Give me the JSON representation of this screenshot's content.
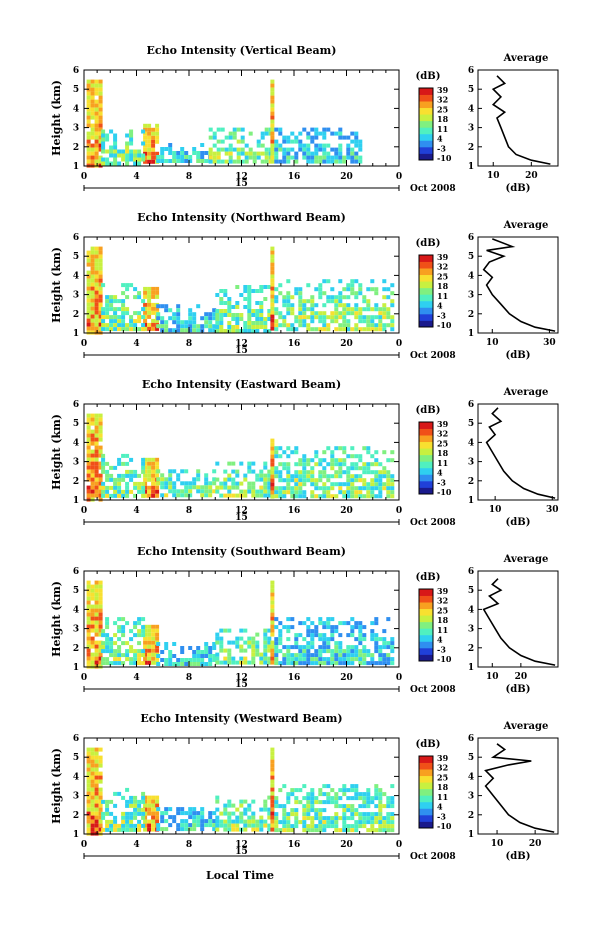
{
  "figure": {
    "xlabel": "Local Time",
    "date_label": "Oct 2008",
    "day_label": "15",
    "colorbar_unit": "(dB)",
    "avg_title": "Average",
    "avg_xlabel": "(dB)"
  },
  "colorbar": {
    "ticks": [
      "39",
      "32",
      "25",
      "18",
      "11",
      "4",
      "-3",
      "-10"
    ],
    "colors": [
      "#1a1a8c",
      "#2040d8",
      "#2f8ff0",
      "#2fd0f0",
      "#50f0c0",
      "#80f080",
      "#c8f040",
      "#f8e030",
      "#f8a020",
      "#f05018",
      "#d81818"
    ]
  },
  "chart_data": [
    {
      "type": "heatmap",
      "title": "Echo Intensity (Vertical Beam)",
      "ylabel": "Height (km)",
      "xlim": [
        0,
        24
      ],
      "ylim": [
        1,
        6
      ],
      "xticks": [
        "0",
        "4",
        "8",
        "12",
        "16",
        "20",
        "0"
      ],
      "yticks": [
        "1",
        "2",
        "3",
        "4",
        "5",
        "6"
      ],
      "echo_regions": [
        {
          "t0": 0.2,
          "t1": 1.3,
          "h0": 1.1,
          "h1": 5.5,
          "level": "strong"
        },
        {
          "t0": 4.5,
          "t1": 5.5,
          "h0": 1.2,
          "h1": 3.2,
          "level": "strong"
        },
        {
          "t0": 1.3,
          "t1": 4.5,
          "h0": 1.2,
          "h1": 2.9,
          "level": "moderate"
        },
        {
          "t0": 5.5,
          "t1": 9.5,
          "h0": 1.2,
          "h1": 2.2,
          "level": "weak"
        },
        {
          "t0": 9.5,
          "t1": 14.2,
          "h0": 1.2,
          "h1": 3.0,
          "level": "moderate"
        },
        {
          "t0": 14.2,
          "t1": 14.5,
          "h0": 1.2,
          "h1": 5.5,
          "level": "strong"
        },
        {
          "t0": 14.5,
          "t1": 21.0,
          "h0": 1.2,
          "h1": 3.0,
          "level": "weak"
        }
      ],
      "average": {
        "xlim": [
          6,
          27
        ],
        "xticks": [
          "10",
          "20"
        ],
        "profile": [
          [
            25,
            1.1
          ],
          [
            20,
            1.3
          ],
          [
            16,
            1.6
          ],
          [
            14,
            2.0
          ],
          [
            13,
            2.5
          ],
          [
            12,
            3.0
          ],
          [
            11,
            3.5
          ],
          [
            13,
            3.8
          ],
          [
            10,
            4.2
          ],
          [
            12,
            4.6
          ],
          [
            10,
            5.0
          ],
          [
            13,
            5.3
          ],
          [
            11,
            5.7
          ]
        ]
      }
    },
    {
      "type": "heatmap",
      "title": "Echo Intensity (Northward Beam)",
      "ylabel": "Height (km)",
      "xlim": [
        0,
        24
      ],
      "ylim": [
        1,
        6
      ],
      "xticks": [
        "0",
        "4",
        "8",
        "12",
        "16",
        "20",
        "0"
      ],
      "yticks": [
        "1",
        "2",
        "3",
        "4",
        "5",
        "6"
      ],
      "echo_regions": [
        {
          "t0": 0.2,
          "t1": 1.3,
          "h0": 1.1,
          "h1": 5.5,
          "level": "strong"
        },
        {
          "t0": 4.5,
          "t1": 5.5,
          "h0": 1.3,
          "h1": 3.4,
          "level": "strong"
        },
        {
          "t0": 1.3,
          "t1": 4.5,
          "h0": 1.2,
          "h1": 3.6,
          "level": "moderate"
        },
        {
          "t0": 5.5,
          "t1": 10.0,
          "h0": 1.2,
          "h1": 2.5,
          "level": "weak"
        },
        {
          "t0": 10.0,
          "t1": 14.2,
          "h0": 1.2,
          "h1": 3.5,
          "level": "moderate"
        },
        {
          "t0": 14.2,
          "t1": 14.5,
          "h0": 1.2,
          "h1": 5.5,
          "level": "strong"
        },
        {
          "t0": 14.5,
          "t1": 23.5,
          "h0": 1.2,
          "h1": 3.8,
          "level": "moderate"
        }
      ],
      "average": {
        "xlim": [
          5,
          33
        ],
        "xticks": [
          "10",
          "30"
        ],
        "profile": [
          [
            32,
            1.1
          ],
          [
            25,
            1.3
          ],
          [
            20,
            1.6
          ],
          [
            16,
            2.0
          ],
          [
            13,
            2.5
          ],
          [
            10,
            3.0
          ],
          [
            8,
            3.5
          ],
          [
            10,
            3.9
          ],
          [
            7,
            4.3
          ],
          [
            9,
            4.7
          ],
          [
            14,
            5.0
          ],
          [
            8,
            5.3
          ],
          [
            17,
            5.5
          ],
          [
            10,
            5.9
          ]
        ]
      }
    },
    {
      "type": "heatmap",
      "title": "Echo Intensity (Eastward Beam)",
      "ylabel": "Height (km)",
      "xlim": [
        0,
        24
      ],
      "ylim": [
        1,
        6
      ],
      "xticks": [
        "0",
        "4",
        "8",
        "12",
        "16",
        "20",
        "0"
      ],
      "yticks": [
        "1",
        "2",
        "3",
        "4",
        "5",
        "6"
      ],
      "echo_regions": [
        {
          "t0": 0.2,
          "t1": 1.3,
          "h0": 1.1,
          "h1": 5.5,
          "level": "strong"
        },
        {
          "t0": 4.5,
          "t1": 5.5,
          "h0": 1.3,
          "h1": 3.2,
          "level": "strong"
        },
        {
          "t0": 1.3,
          "t1": 4.5,
          "h0": 1.2,
          "h1": 3.4,
          "level": "moderate"
        },
        {
          "t0": 5.5,
          "t1": 10.0,
          "h0": 1.2,
          "h1": 2.6,
          "level": "moderate"
        },
        {
          "t0": 10.0,
          "t1": 14.2,
          "h0": 1.2,
          "h1": 3.0,
          "level": "moderate"
        },
        {
          "t0": 14.2,
          "t1": 14.5,
          "h0": 1.2,
          "h1": 4.2,
          "level": "strong"
        },
        {
          "t0": 14.5,
          "t1": 23.5,
          "h0": 1.2,
          "h1": 3.8,
          "level": "moderate"
        }
      ],
      "average": {
        "xlim": [
          4,
          32
        ],
        "xticks": [
          "10",
          "30"
        ],
        "profile": [
          [
            31,
            1.1
          ],
          [
            25,
            1.3
          ],
          [
            20,
            1.6
          ],
          [
            16,
            2.0
          ],
          [
            13,
            2.5
          ],
          [
            11,
            3.0
          ],
          [
            9,
            3.5
          ],
          [
            7,
            4.0
          ],
          [
            10,
            4.4
          ],
          [
            8,
            4.8
          ],
          [
            12,
            5.1
          ],
          [
            9,
            5.5
          ],
          [
            11,
            5.8
          ]
        ]
      }
    },
    {
      "type": "heatmap",
      "title": "Echo Intensity (Southward Beam)",
      "ylabel": "Height (km)",
      "xlim": [
        0,
        24
      ],
      "ylim": [
        1,
        6
      ],
      "xticks": [
        "0",
        "4",
        "8",
        "12",
        "16",
        "20",
        "0"
      ],
      "yticks": [
        "1",
        "2",
        "3",
        "4",
        "5",
        "6"
      ],
      "echo_regions": [
        {
          "t0": 0.2,
          "t1": 1.3,
          "h0": 1.1,
          "h1": 5.5,
          "level": "strong"
        },
        {
          "t0": 4.5,
          "t1": 5.5,
          "h0": 1.3,
          "h1": 3.2,
          "level": "strong"
        },
        {
          "t0": 1.3,
          "t1": 4.5,
          "h0": 1.2,
          "h1": 3.6,
          "level": "moderate"
        },
        {
          "t0": 5.5,
          "t1": 10.0,
          "h0": 1.2,
          "h1": 2.3,
          "level": "weak"
        },
        {
          "t0": 10.0,
          "t1": 14.2,
          "h0": 1.2,
          "h1": 3.0,
          "level": "moderate"
        },
        {
          "t0": 14.2,
          "t1": 14.5,
          "h0": 1.2,
          "h1": 5.5,
          "level": "strong"
        },
        {
          "t0": 14.5,
          "t1": 23.5,
          "h0": 1.2,
          "h1": 3.6,
          "level": "weak"
        }
      ],
      "average": {
        "xlim": [
          5,
          33
        ],
        "xticks": [
          "10",
          "20"
        ],
        "profile": [
          [
            32,
            1.1
          ],
          [
            25,
            1.3
          ],
          [
            20,
            1.6
          ],
          [
            16,
            2.0
          ],
          [
            13,
            2.5
          ],
          [
            11,
            3.0
          ],
          [
            9,
            3.5
          ],
          [
            7,
            4.0
          ],
          [
            12,
            4.3
          ],
          [
            9,
            4.7
          ],
          [
            13,
            5.0
          ],
          [
            10,
            5.3
          ],
          [
            12,
            5.6
          ]
        ]
      }
    },
    {
      "type": "heatmap",
      "title": "Echo Intensity (Westward Beam)",
      "ylabel": "Height (km)",
      "xlim": [
        0,
        24
      ],
      "ylim": [
        1,
        6
      ],
      "xticks": [
        "0",
        "4",
        "8",
        "12",
        "16",
        "20",
        "0"
      ],
      "yticks": [
        "1",
        "2",
        "3",
        "4",
        "5",
        "6"
      ],
      "echo_regions": [
        {
          "t0": 0.2,
          "t1": 1.3,
          "h0": 1.1,
          "h1": 5.5,
          "level": "strong"
        },
        {
          "t0": 4.5,
          "t1": 5.5,
          "h0": 1.3,
          "h1": 3.0,
          "level": "strong"
        },
        {
          "t0": 1.3,
          "t1": 4.5,
          "h0": 1.2,
          "h1": 3.4,
          "level": "moderate"
        },
        {
          "t0": 5.5,
          "t1": 10.0,
          "h0": 1.2,
          "h1": 2.4,
          "level": "weak"
        },
        {
          "t0": 10.0,
          "t1": 14.2,
          "h0": 1.2,
          "h1": 3.0,
          "level": "moderate"
        },
        {
          "t0": 14.2,
          "t1": 14.5,
          "h0": 1.2,
          "h1": 5.5,
          "level": "strong"
        },
        {
          "t0": 14.5,
          "t1": 23.5,
          "h0": 1.2,
          "h1": 3.6,
          "level": "moderate"
        }
      ],
      "average": {
        "xlim": [
          5,
          26
        ],
        "xticks": [
          "10",
          "20"
        ],
        "profile": [
          [
            25,
            1.1
          ],
          [
            20,
            1.3
          ],
          [
            16,
            1.6
          ],
          [
            13,
            2.0
          ],
          [
            11,
            2.5
          ],
          [
            9,
            3.0
          ],
          [
            7,
            3.5
          ],
          [
            9,
            3.9
          ],
          [
            7,
            4.3
          ],
          [
            13,
            4.6
          ],
          [
            19,
            4.8
          ],
          [
            9,
            5.0
          ],
          [
            12,
            5.4
          ],
          [
            10,
            5.7
          ]
        ]
      }
    }
  ]
}
